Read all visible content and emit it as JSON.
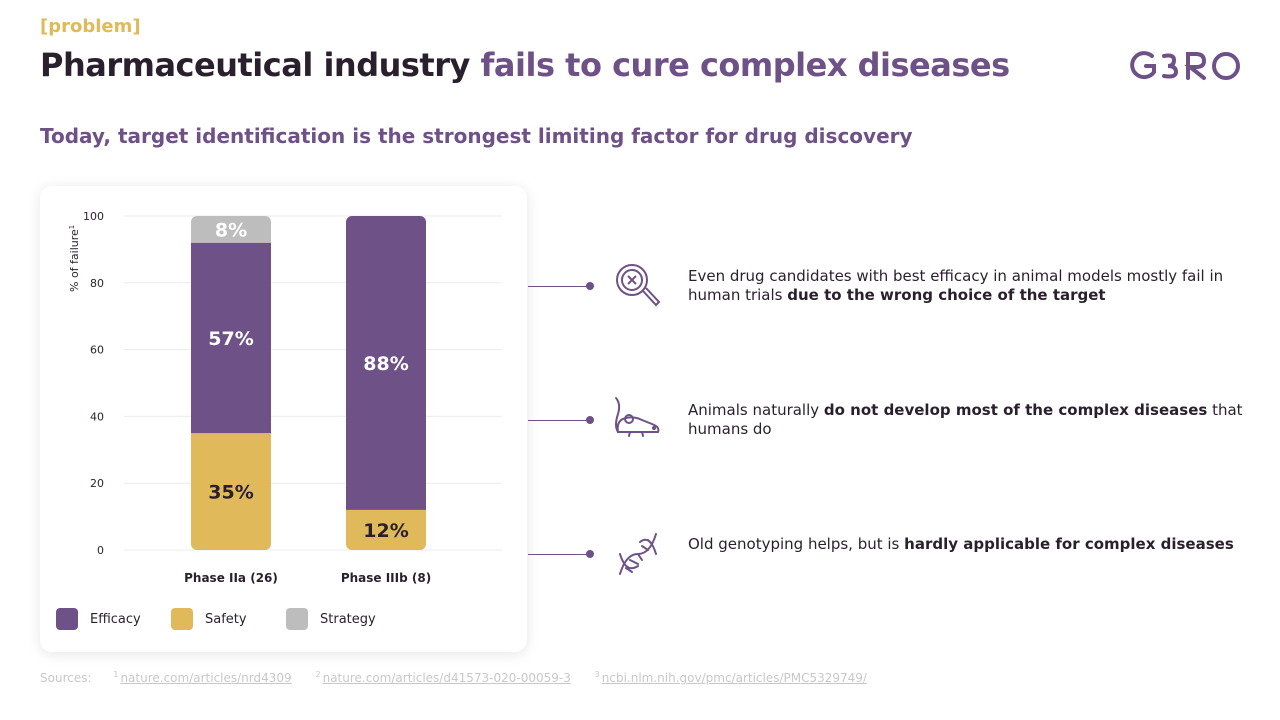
{
  "header": {
    "tag": "[problem]",
    "title_part1": "Pharmaceutical industry",
    "title_part2": "fails to cure complex diseases",
    "logo_text": "GERO",
    "subtitle": "Today, target identification  is the strongest  limiting  factor for drug discovery"
  },
  "colors": {
    "efficacy": "#6e5186",
    "safety": "#e0b95a",
    "strategy": "#bdbdbd",
    "accent": "#6e5186",
    "tag": "#e0b95a"
  },
  "chart_data": {
    "type": "bar",
    "stacked": true,
    "ylabel": "% of failure",
    "ylabel_sup": "1",
    "ylim": [
      0,
      100
    ],
    "yticks": [
      0,
      20,
      40,
      60,
      80,
      100
    ],
    "grid": true,
    "categories": [
      "Phase IIa (26)",
      "Phase IIIb (8)"
    ],
    "series": [
      {
        "name": "Safety",
        "color": "#e0b95a",
        "values": [
          35,
          12
        ],
        "labels": [
          "35%",
          "12%"
        ]
      },
      {
        "name": "Efficacy",
        "color": "#6e5186",
        "values": [
          57,
          88
        ],
        "labels": [
          "57%",
          "88%"
        ]
      },
      {
        "name": "Strategy",
        "color": "#bdbdbd",
        "values": [
          8,
          0
        ],
        "labels": [
          "8%",
          ""
        ]
      }
    ],
    "legend": [
      "Efficacy",
      "Safety",
      "Strategy"
    ],
    "legend_position": "bottom"
  },
  "points": [
    {
      "icon": "magnifier-x-icon",
      "text_plain": "Even drug candidates with best efficacy in animal models mostly fail in human trials ",
      "text_bold": "due to the wrong choice of the target",
      "text_after": ""
    },
    {
      "icon": "mouse-icon",
      "text_plain": "Animals naturally ",
      "text_bold": "do not develop most of the complex diseases",
      "text_after": " that humans do"
    },
    {
      "icon": "dna-icon",
      "text_plain": "Old genotyping helps, but is ",
      "text_bold": "hardly applicable for complex diseases",
      "text_after": ""
    }
  ],
  "sources": {
    "label": "Sources:",
    "items": [
      {
        "num": "1",
        "text": "nature.com/articles/nrd4309"
      },
      {
        "num": "2",
        "text": "nature.com/articles/d41573-020-00059-3"
      },
      {
        "num": "3",
        "text": "ncbi.nlm.nih.gov/pmc/articles/PMC5329749/"
      }
    ]
  }
}
